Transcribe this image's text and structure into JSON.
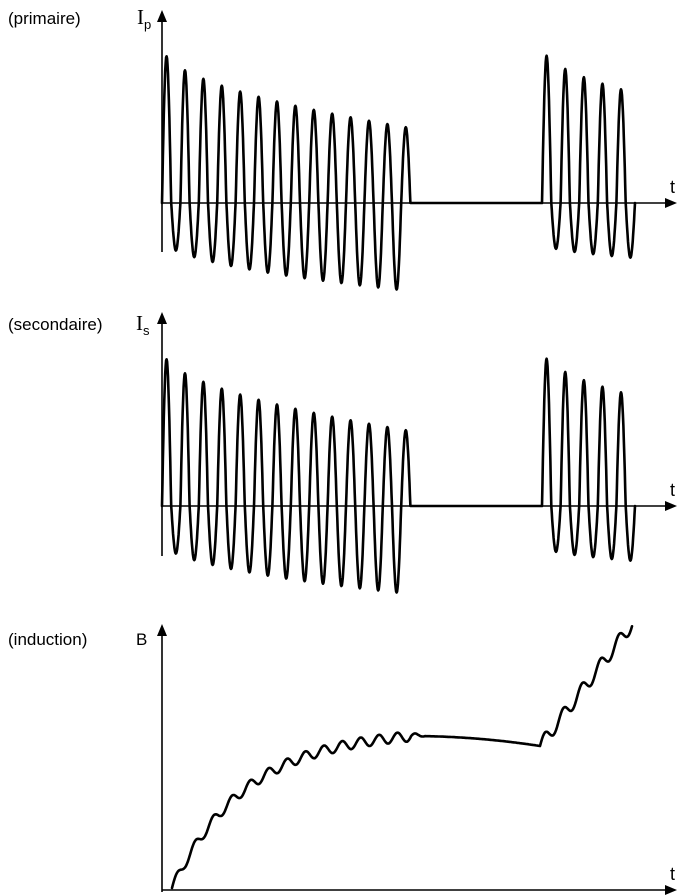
{
  "panels": [
    {
      "id": "primary",
      "caption": "(primaire)",
      "symbol": "I",
      "subscript": "p",
      "time_label": "t"
    },
    {
      "id": "secondary",
      "caption": "(secondaire)",
      "symbol": "I",
      "subscript": "s",
      "time_label": "t"
    },
    {
      "id": "induction",
      "caption": "(induction)",
      "symbol": "B",
      "subscript": "",
      "time_label": "t"
    }
  ]
}
